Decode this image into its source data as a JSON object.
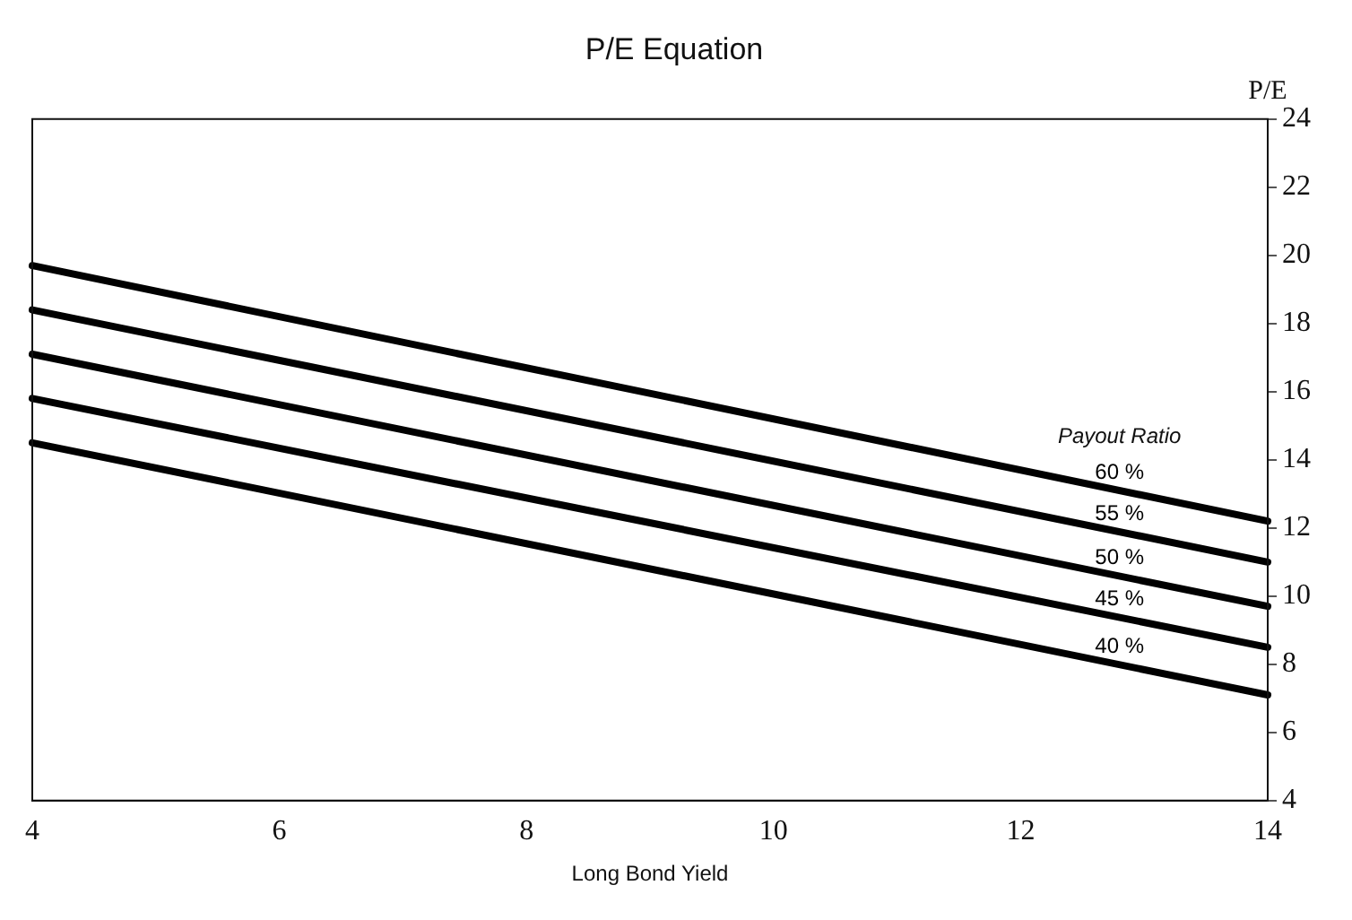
{
  "chart_data": {
    "type": "line",
    "title": "P/E Equation",
    "xlabel": "Long Bond Yield",
    "ylabel": "P/E",
    "legend_title": "Payout Ratio",
    "x": [
      4,
      14
    ],
    "series": [
      {
        "name": "60 %",
        "color": "#000000",
        "values": [
          19.7,
          12.2
        ]
      },
      {
        "name": "55 %",
        "color": "#000000",
        "values": [
          18.4,
          11.0
        ]
      },
      {
        "name": "50 %",
        "color": "#000000",
        "values": [
          17.1,
          9.7
        ]
      },
      {
        "name": "45 %",
        "color": "#000000",
        "values": [
          15.8,
          8.5
        ]
      },
      {
        "name": "40 %",
        "color": "#000000",
        "values": [
          14.5,
          7.1
        ]
      }
    ],
    "xlim": [
      4,
      14
    ],
    "xticks": [
      4,
      6,
      8,
      10,
      12,
      14
    ],
    "ylim": [
      4,
      24
    ],
    "yticks": [
      4,
      6,
      8,
      10,
      12,
      14,
      16,
      18,
      20,
      22,
      24
    ],
    "grid": false,
    "legend": false,
    "marker": "none",
    "line_style": "solid"
  }
}
